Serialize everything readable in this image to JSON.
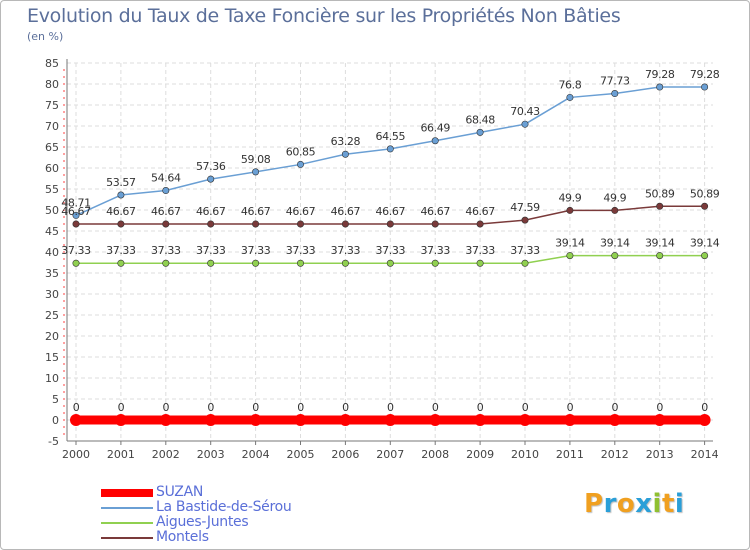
{
  "chart_data": {
    "type": "line",
    "title": "Evolution du Taux de Taxe Foncière sur les Propriétés Non Bâties",
    "ylabel": "(en %)",
    "xlabel": "",
    "categories": [
      "2000",
      "2001",
      "2002",
      "2003",
      "2004",
      "2005",
      "2006",
      "2007",
      "2008",
      "2009",
      "2010",
      "2011",
      "2012",
      "2013",
      "2014"
    ],
    "ylim": [
      -5,
      85
    ],
    "yticks": [
      -5,
      0,
      5,
      10,
      15,
      20,
      25,
      30,
      35,
      40,
      45,
      50,
      55,
      60,
      65,
      70,
      75,
      80,
      85
    ],
    "grid": true,
    "legend_position": "bottom-left",
    "series": [
      {
        "name": "SUZAN",
        "color": "#ff0000",
        "labels": [
          "0",
          "0",
          "0",
          "0",
          "0",
          "0",
          "0",
          "0",
          "0",
          "0",
          "0",
          "0",
          "0",
          "0",
          "0"
        ],
        "values": [
          0,
          0,
          0,
          0,
          0,
          0,
          0,
          0,
          0,
          0,
          0,
          0,
          0,
          0,
          0
        ]
      },
      {
        "name": "La Bastide-de-Sérou",
        "color": "#6a9fd4",
        "labels": [
          "48.71",
          "53.57",
          "54.64",
          "57.36",
          "59.08",
          "60.85",
          "63.28",
          "64.55",
          "66.49",
          "68.48",
          "70.43",
          "76.8",
          "77.73",
          "79.28",
          "79.28"
        ],
        "values": [
          48.71,
          53.57,
          54.64,
          57.36,
          59.08,
          60.85,
          63.28,
          64.55,
          66.49,
          68.48,
          70.43,
          76.8,
          77.73,
          79.28,
          79.28
        ]
      },
      {
        "name": "Aigues-Juntes",
        "color": "#90d050",
        "labels": [
          "37.33",
          "37.33",
          "37.33",
          "37.33",
          "37.33",
          "37.33",
          "37.33",
          "37.33",
          "37.33",
          "37.33",
          "37.33",
          "39.14",
          "39.14",
          "39.14",
          "39.14"
        ],
        "values": [
          37.33,
          37.33,
          37.33,
          37.33,
          37.33,
          37.33,
          37.33,
          37.33,
          37.33,
          37.33,
          37.33,
          39.14,
          39.14,
          39.14,
          39.14
        ]
      },
      {
        "name": "Montels",
        "color": "#7a3a3a",
        "labels": [
          "46.67",
          "46.67",
          "46.67",
          "46.67",
          "46.67",
          "46.67",
          "46.67",
          "46.67",
          "46.67",
          "46.67",
          "47.59",
          "49.9",
          "49.9",
          "50.89",
          "50.89"
        ],
        "values": [
          46.67,
          46.67,
          46.67,
          46.67,
          46.67,
          46.67,
          46.67,
          46.67,
          46.67,
          46.67,
          47.59,
          49.9,
          49.9,
          50.89,
          50.89
        ]
      }
    ]
  },
  "logo": {
    "letters": [
      "P",
      "r",
      "o",
      "x",
      "i",
      "t",
      "i"
    ],
    "colors": [
      "#f0a020",
      "#2a9fd8",
      "#f0a020",
      "#2a9fd8",
      "#90c030",
      "#f0a020",
      "#2a9fd8"
    ]
  }
}
